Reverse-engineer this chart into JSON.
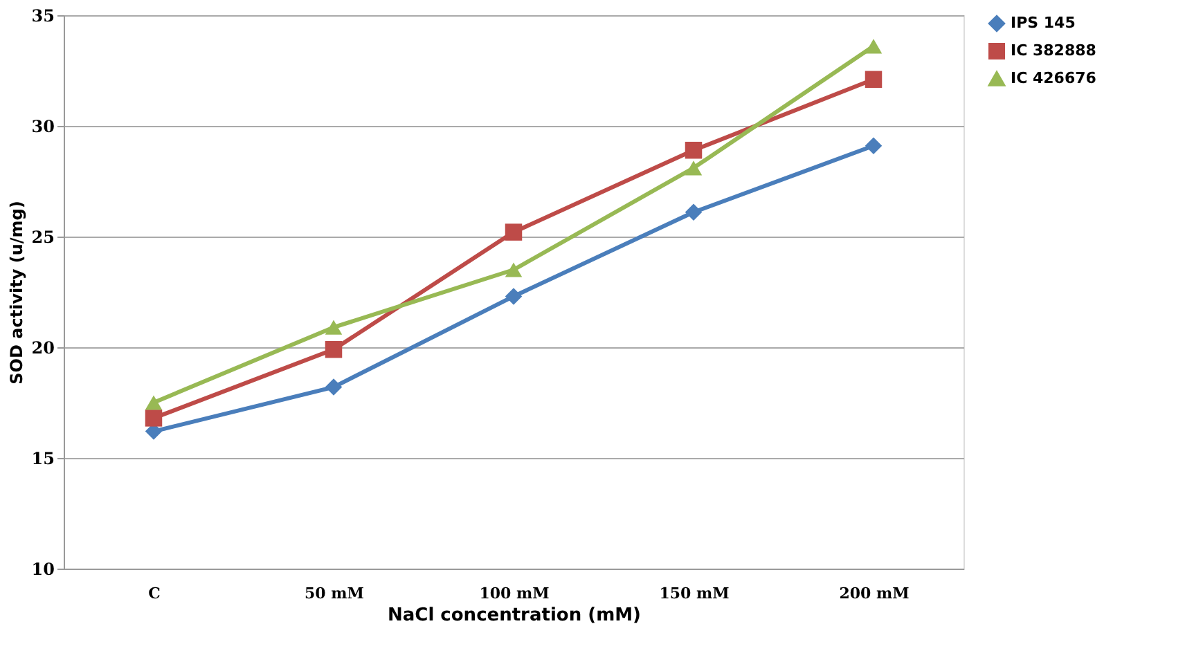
{
  "chart_data": {
    "type": "line",
    "xlabel": "NaCl concentration (mM)",
    "ylabel": "SOD activity (u/mg)",
    "categories": [
      "C",
      "50 mM",
      "100 mM",
      "150 mM",
      "200 mM"
    ],
    "series": [
      {
        "name": "IPS 145",
        "color": "#4a7ebb",
        "marker": "diamond",
        "values": [
          16.2,
          18.2,
          22.3,
          26.1,
          29.1
        ]
      },
      {
        "name": "IC 382888",
        "color": "#be4b48",
        "marker": "square",
        "values": [
          16.8,
          19.9,
          25.2,
          28.9,
          32.1
        ]
      },
      {
        "name": "IC 426676",
        "color": "#98b954",
        "marker": "triangle",
        "values": [
          17.5,
          20.9,
          23.5,
          28.1,
          33.6
        ]
      }
    ],
    "ylim": [
      10,
      35
    ],
    "yticks": [
      10,
      15,
      20,
      25,
      30,
      35
    ],
    "grid": "y",
    "legend": "right",
    "line_style": "solid"
  }
}
